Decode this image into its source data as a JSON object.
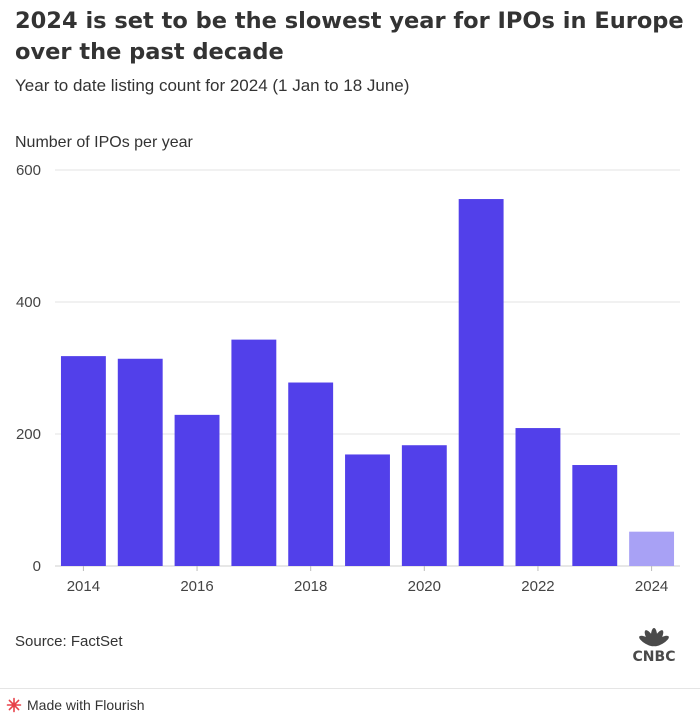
{
  "header": {
    "title": "2024 is set to be the slowest year for IPOs in Europe over the past decade",
    "subtitle": "Year to date listing count for 2024 (1 Jan to 18 June)"
  },
  "chart_data": {
    "type": "bar",
    "ylabel": "Number of IPOs per year",
    "xlabel": "",
    "categories": [
      "2014",
      "2015",
      "2016",
      "2017",
      "2018",
      "2019",
      "2020",
      "2021",
      "2022",
      "2023",
      "2024"
    ],
    "values": [
      318,
      314,
      229,
      343,
      278,
      169,
      183,
      556,
      209,
      153,
      52
    ],
    "ylim": [
      0,
      600
    ],
    "y_ticks": [
      0,
      200,
      400,
      600
    ],
    "x_tick_labels": [
      "2014",
      "2016",
      "2018",
      "2020",
      "2022",
      "2024"
    ],
    "grid": true,
    "colors": {
      "bar": "#5240ea",
      "highlight": "#a8a1f5",
      "grid": "#e3e3e3"
    },
    "highlight_category": "2024"
  },
  "footer": {
    "source": "Source: FactSet",
    "logo_text": "CNBC",
    "made_with": "Made with Flourish"
  }
}
